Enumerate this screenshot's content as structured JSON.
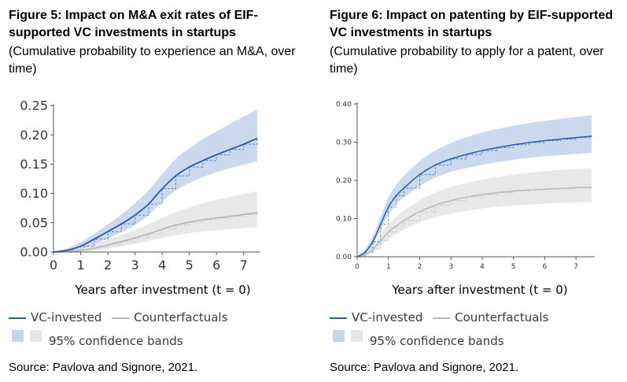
{
  "figures": [
    {
      "title": "Figure 5:  Impact on M&A exit rates of EIF-supported VC investments in startups",
      "subtitle": "(Cumulative probability to experience an M&A, over time)",
      "xlabel": "Years after investment (t = 0)",
      "legend": {
        "vc": "VC-invested",
        "cf": "Counterfactuals",
        "band": "95% confidence bands"
      },
      "source": "Source: Pavlova and Signore, 2021."
    },
    {
      "title": "Figure 6:  Impact on patenting by EIF-supported VC investments in startups",
      "subtitle": "(Cumulative probability to apply for a patent, over time)",
      "xlabel": "Years after investment (t = 0)",
      "legend": {
        "vc": "VC-invested",
        "cf": "Counterfactuals",
        "band": "95% confidence bands"
      },
      "source": "Source: Pavlova and Signore, 2021."
    }
  ],
  "colors": {
    "vc_line": "#2b5aa6",
    "vc_band": "#c5d5ec",
    "cf_line": "#b8b8b8",
    "cf_band": "#e6e6e6",
    "axis": "#555555"
  },
  "chart_data": [
    {
      "type": "line",
      "xlabel": "Years after investment (t = 0)",
      "xlim": [
        0,
        7.5
      ],
      "ylim": [
        0,
        0.25
      ],
      "xticks": [
        "0",
        "1",
        "2",
        "3",
        "4",
        "5",
        "6",
        "7"
      ],
      "yticks": [
        "0.00",
        "0.05",
        "0.10",
        "0.15",
        "0.20",
        "0.25"
      ],
      "x": [
        0,
        0.5,
        1,
        1.5,
        2,
        2.5,
        3,
        3.5,
        4,
        4.5,
        5,
        5.5,
        6,
        6.5,
        7,
        7.5
      ],
      "series": [
        {
          "name": "VC-invested",
          "values": [
            0.0,
            0.003,
            0.01,
            0.022,
            0.035,
            0.048,
            0.063,
            0.082,
            0.108,
            0.13,
            0.145,
            0.156,
            0.166,
            0.175,
            0.184,
            0.194
          ],
          "lower": [
            0.0,
            0.001,
            0.005,
            0.013,
            0.023,
            0.034,
            0.046,
            0.063,
            0.086,
            0.105,
            0.118,
            0.128,
            0.136,
            0.143,
            0.149,
            0.155
          ],
          "upper": [
            0.0,
            0.006,
            0.017,
            0.031,
            0.047,
            0.064,
            0.083,
            0.105,
            0.133,
            0.159,
            0.177,
            0.193,
            0.206,
            0.219,
            0.231,
            0.243
          ]
        },
        {
          "name": "Counterfactuals",
          "values": [
            0.0,
            0.001,
            0.003,
            0.007,
            0.012,
            0.018,
            0.024,
            0.031,
            0.039,
            0.046,
            0.051,
            0.055,
            0.058,
            0.061,
            0.064,
            0.067
          ],
          "lower": [
            0.0,
            0.0,
            0.001,
            0.003,
            0.006,
            0.01,
            0.014,
            0.019,
            0.024,
            0.029,
            0.032,
            0.035,
            0.037,
            0.039,
            0.041,
            0.042
          ],
          "upper": [
            0.0,
            0.003,
            0.007,
            0.013,
            0.021,
            0.029,
            0.038,
            0.048,
            0.058,
            0.068,
            0.076,
            0.083,
            0.089,
            0.094,
            0.099,
            0.104
          ]
        }
      ],
      "legend": "bottom",
      "grid": false
    },
    {
      "type": "line",
      "xlabel": "Years after investment (t = 0)",
      "xlim": [
        0,
        7.5
      ],
      "ylim": [
        0,
        0.4
      ],
      "xticks": [
        "0",
        "1",
        "2",
        "3",
        "4",
        "5",
        "6",
        "7"
      ],
      "yticks": [
        "0.00",
        "0.10",
        "0.20",
        "0.30",
        "0.40"
      ],
      "x": [
        0,
        0.25,
        0.5,
        0.75,
        1,
        1.25,
        1.5,
        2,
        2.5,
        3,
        3.5,
        4,
        4.5,
        5,
        5.5,
        6,
        6.5,
        7,
        7.5
      ],
      "series": [
        {
          "name": "VC-invested",
          "values": [
            0.0,
            0.012,
            0.04,
            0.085,
            0.13,
            0.16,
            0.18,
            0.215,
            0.24,
            0.256,
            0.268,
            0.278,
            0.286,
            0.293,
            0.299,
            0.304,
            0.308,
            0.312,
            0.316
          ],
          "lower": [
            0.0,
            0.008,
            0.03,
            0.07,
            0.11,
            0.138,
            0.155,
            0.185,
            0.207,
            0.222,
            0.232,
            0.241,
            0.248,
            0.254,
            0.259,
            0.263,
            0.266,
            0.269,
            0.272
          ],
          "upper": [
            0.0,
            0.018,
            0.055,
            0.105,
            0.155,
            0.188,
            0.212,
            0.25,
            0.278,
            0.298,
            0.313,
            0.325,
            0.335,
            0.343,
            0.35,
            0.356,
            0.361,
            0.366,
            0.371
          ]
        },
        {
          "name": "Counterfactuals",
          "values": [
            0.0,
            0.006,
            0.02,
            0.042,
            0.065,
            0.081,
            0.095,
            0.118,
            0.135,
            0.147,
            0.156,
            0.163,
            0.168,
            0.172,
            0.175,
            0.177,
            0.179,
            0.181,
            0.182
          ],
          "lower": [
            0.0,
            0.003,
            0.012,
            0.028,
            0.047,
            0.06,
            0.071,
            0.09,
            0.103,
            0.113,
            0.12,
            0.126,
            0.131,
            0.134,
            0.137,
            0.139,
            0.141,
            0.142,
            0.143
          ],
          "upper": [
            0.0,
            0.01,
            0.03,
            0.058,
            0.085,
            0.104,
            0.12,
            0.148,
            0.168,
            0.182,
            0.193,
            0.202,
            0.209,
            0.215,
            0.22,
            0.224,
            0.227,
            0.23,
            0.232
          ]
        }
      ],
      "legend": "bottom",
      "grid": false
    }
  ]
}
